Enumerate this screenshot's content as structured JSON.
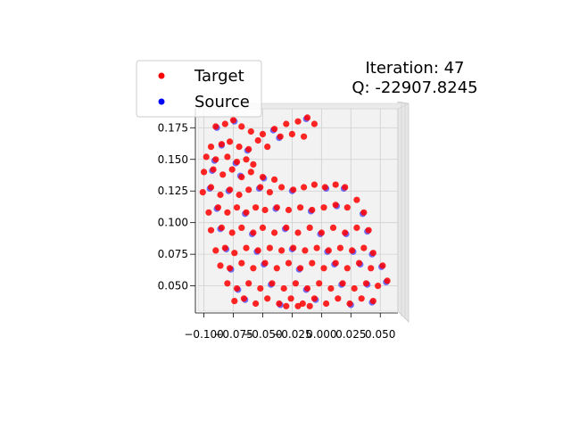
{
  "chart_data": {
    "type": "scatter",
    "subtype": "3d-scatter-point-cloud-registration",
    "title_lines": [
      "Iteration: 47",
      "Q: -22907.8245"
    ],
    "xlabel": "",
    "ylabel": "",
    "x_ticks": [
      "−0.100",
      "−0.075",
      "−0.050",
      "−0.025",
      "0.000",
      "0.025",
      "0.050"
    ],
    "y_ticks": [
      "0.175",
      "0.150",
      "0.125",
      "0.100",
      "0.075",
      "0.050"
    ],
    "xlim": [
      -0.105,
      0.065
    ],
    "ylim": [
      0.03,
      0.19
    ],
    "grid": true,
    "legend_position": "top-left",
    "series": [
      {
        "name": "Target",
        "color": "#ff0000",
        "marker": "circle",
        "points": [
          [
            -0.09,
            0.176
          ],
          [
            -0.082,
            0.178
          ],
          [
            -0.075,
            0.181
          ],
          [
            -0.068,
            0.176
          ],
          [
            -0.06,
            0.172
          ],
          [
            -0.05,
            0.17
          ],
          [
            -0.04,
            0.174
          ],
          [
            -0.03,
            0.178
          ],
          [
            -0.02,
            0.18
          ],
          [
            -0.012,
            0.183
          ],
          [
            -0.006,
            0.178
          ],
          [
            -0.094,
            0.16
          ],
          [
            -0.085,
            0.162
          ],
          [
            -0.078,
            0.164
          ],
          [
            -0.07,
            0.16
          ],
          [
            -0.062,
            0.158
          ],
          [
            -0.054,
            0.165
          ],
          [
            -0.046,
            0.16
          ],
          [
            -0.035,
            0.168
          ],
          [
            -0.025,
            0.17
          ],
          [
            -0.015,
            0.168
          ],
          [
            -0.098,
            0.152
          ],
          [
            -0.09,
            0.15
          ],
          [
            -0.08,
            0.152
          ],
          [
            -0.072,
            0.148
          ],
          [
            -0.064,
            0.15
          ],
          [
            -0.058,
            0.146
          ],
          [
            -0.1,
            0.14
          ],
          [
            -0.092,
            0.142
          ],
          [
            -0.084,
            0.138
          ],
          [
            -0.076,
            0.142
          ],
          [
            -0.068,
            0.136
          ],
          [
            -0.06,
            0.14
          ],
          [
            -0.05,
            0.136
          ],
          [
            -0.04,
            0.134
          ],
          [
            -0.101,
            0.124
          ],
          [
            -0.094,
            0.128
          ],
          [
            -0.086,
            0.122
          ],
          [
            -0.078,
            0.126
          ],
          [
            -0.07,
            0.122
          ],
          [
            -0.062,
            0.126
          ],
          [
            -0.052,
            0.128
          ],
          [
            -0.044,
            0.124
          ],
          [
            -0.034,
            0.128
          ],
          [
            -0.024,
            0.126
          ],
          [
            -0.015,
            0.128
          ],
          [
            -0.006,
            0.13
          ],
          [
            0.003,
            0.128
          ],
          [
            0.012,
            0.13
          ],
          [
            0.02,
            0.128
          ],
          [
            -0.096,
            0.108
          ],
          [
            -0.088,
            0.112
          ],
          [
            -0.08,
            0.108
          ],
          [
            -0.072,
            0.112
          ],
          [
            -0.064,
            0.108
          ],
          [
            -0.056,
            0.112
          ],
          [
            -0.048,
            0.11
          ],
          [
            -0.038,
            0.112
          ],
          [
            -0.028,
            0.11
          ],
          [
            -0.018,
            0.112
          ],
          [
            -0.008,
            0.11
          ],
          [
            0.002,
            0.112
          ],
          [
            0.012,
            0.114
          ],
          [
            0.022,
            0.112
          ],
          [
            0.03,
            0.118
          ],
          [
            0.036,
            0.108
          ],
          [
            -0.094,
            0.094
          ],
          [
            -0.085,
            0.096
          ],
          [
            -0.076,
            0.092
          ],
          [
            -0.068,
            0.096
          ],
          [
            -0.058,
            0.092
          ],
          [
            -0.05,
            0.096
          ],
          [
            -0.04,
            0.092
          ],
          [
            -0.03,
            0.096
          ],
          [
            -0.02,
            0.092
          ],
          [
            -0.01,
            0.096
          ],
          [
            0.0,
            0.092
          ],
          [
            0.01,
            0.096
          ],
          [
            0.02,
            0.092
          ],
          [
            0.03,
            0.096
          ],
          [
            0.04,
            0.094
          ],
          [
            -0.09,
            0.078
          ],
          [
            -0.082,
            0.08
          ],
          [
            -0.074,
            0.076
          ],
          [
            -0.064,
            0.08
          ],
          [
            -0.054,
            0.078
          ],
          [
            -0.044,
            0.08
          ],
          [
            -0.034,
            0.078
          ],
          [
            -0.024,
            0.08
          ],
          [
            -0.014,
            0.078
          ],
          [
            -0.004,
            0.08
          ],
          [
            0.006,
            0.078
          ],
          [
            0.016,
            0.08
          ],
          [
            0.026,
            0.078
          ],
          [
            0.036,
            0.08
          ],
          [
            0.044,
            0.076
          ],
          [
            -0.086,
            0.066
          ],
          [
            -0.078,
            0.064
          ],
          [
            -0.068,
            0.068
          ],
          [
            -0.058,
            0.064
          ],
          [
            -0.048,
            0.068
          ],
          [
            -0.038,
            0.064
          ],
          [
            -0.028,
            0.068
          ],
          [
            -0.018,
            0.064
          ],
          [
            -0.008,
            0.068
          ],
          [
            0.002,
            0.064
          ],
          [
            0.012,
            0.068
          ],
          [
            0.022,
            0.064
          ],
          [
            0.032,
            0.068
          ],
          [
            0.042,
            0.064
          ],
          [
            0.052,
            0.066
          ],
          [
            -0.08,
            0.052
          ],
          [
            -0.072,
            0.048
          ],
          [
            -0.062,
            0.052
          ],
          [
            -0.052,
            0.048
          ],
          [
            -0.042,
            0.052
          ],
          [
            -0.032,
            0.048
          ],
          [
            -0.022,
            0.052
          ],
          [
            -0.012,
            0.048
          ],
          [
            -0.002,
            0.052
          ],
          [
            0.008,
            0.048
          ],
          [
            0.018,
            0.052
          ],
          [
            0.028,
            0.048
          ],
          [
            0.038,
            0.052
          ],
          [
            0.048,
            0.05
          ],
          [
            0.056,
            0.054
          ],
          [
            -0.074,
            0.038
          ],
          [
            -0.066,
            0.04
          ],
          [
            -0.056,
            0.036
          ],
          [
            -0.046,
            0.04
          ],
          [
            -0.036,
            0.036
          ],
          [
            -0.026,
            0.04
          ],
          [
            -0.016,
            0.036
          ],
          [
            -0.006,
            0.04
          ],
          [
            0.004,
            0.036
          ],
          [
            0.014,
            0.04
          ],
          [
            0.024,
            0.036
          ],
          [
            0.034,
            0.04
          ],
          [
            0.044,
            0.038
          ],
          [
            -0.03,
            0.034
          ],
          [
            -0.02,
            0.034
          ],
          [
            -0.01,
            0.034
          ]
        ]
      },
      {
        "name": "Source",
        "color": "#0000ff",
        "marker": "circle",
        "points": [
          [
            -0.089,
            0.175
          ],
          [
            -0.074,
            0.18
          ],
          [
            -0.041,
            0.173
          ],
          [
            -0.013,
            0.182
          ],
          [
            -0.085,
            0.161
          ],
          [
            -0.063,
            0.157
          ],
          [
            -0.036,
            0.167
          ],
          [
            -0.091,
            0.149
          ],
          [
            -0.073,
            0.147
          ],
          [
            -0.093,
            0.141
          ],
          [
            -0.069,
            0.137
          ],
          [
            -0.049,
            0.135
          ],
          [
            -0.095,
            0.127
          ],
          [
            -0.079,
            0.125
          ],
          [
            -0.053,
            0.127
          ],
          [
            -0.025,
            0.125
          ],
          [
            0.004,
            0.127
          ],
          [
            0.019,
            0.127
          ],
          [
            -0.089,
            0.111
          ],
          [
            -0.065,
            0.107
          ],
          [
            -0.039,
            0.111
          ],
          [
            -0.009,
            0.109
          ],
          [
            0.013,
            0.113
          ],
          [
            0.035,
            0.107
          ],
          [
            -0.086,
            0.095
          ],
          [
            -0.059,
            0.091
          ],
          [
            -0.031,
            0.095
          ],
          [
            -0.001,
            0.091
          ],
          [
            0.021,
            0.091
          ],
          [
            0.039,
            0.093
          ],
          [
            -0.081,
            0.079
          ],
          [
            -0.055,
            0.077
          ],
          [
            -0.025,
            0.079
          ],
          [
            0.005,
            0.077
          ],
          [
            0.027,
            0.077
          ],
          [
            0.043,
            0.075
          ],
          [
            -0.077,
            0.063
          ],
          [
            -0.049,
            0.067
          ],
          [
            -0.019,
            0.063
          ],
          [
            0.011,
            0.067
          ],
          [
            0.033,
            0.067
          ],
          [
            0.051,
            0.065
          ],
          [
            -0.071,
            0.047
          ],
          [
            -0.043,
            0.051
          ],
          [
            -0.013,
            0.047
          ],
          [
            0.017,
            0.051
          ],
          [
            0.039,
            0.051
          ],
          [
            0.055,
            0.053
          ],
          [
            -0.065,
            0.039
          ],
          [
            -0.035,
            0.035
          ],
          [
            -0.005,
            0.039
          ],
          [
            0.025,
            0.035
          ],
          [
            0.043,
            0.037
          ]
        ]
      }
    ]
  }
}
